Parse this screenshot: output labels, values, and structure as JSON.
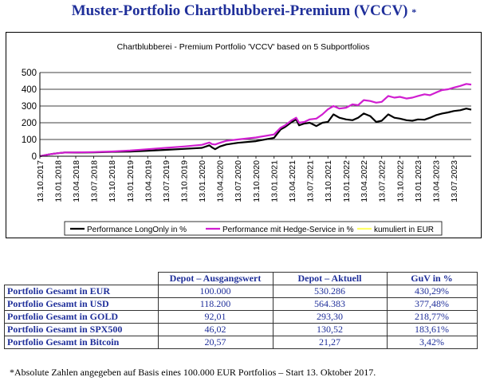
{
  "page": {
    "title": "Muster-Portfolio Chartblubberei-Premium (VCCV)",
    "title_mark": "*",
    "title_color": "#1f2f9a",
    "footnote": "*Absolute Zahlen angegeben auf Basis eines 100.000 EUR Portfolios – Start 13. Oktober 2017."
  },
  "chart_data": {
    "type": "line",
    "title": "Chartblubberei - Premium Portfolio 'VCCV' based on 5 Subportfolios",
    "xlabel": "",
    "ylabel": "",
    "ylim": [
      0,
      500
    ],
    "yticks": [
      0,
      100,
      200,
      300,
      400,
      500
    ],
    "grid": "horizontal",
    "legend_position": "bottom",
    "x_start": "2017-10-13",
    "x_end": "2023-10-10",
    "xticks": [
      "13.10.2017",
      "13.01.2018",
      "13.04.2018",
      "13.07.2018",
      "13.10.2018",
      "13.01.2019",
      "13.04.2019",
      "13.07.2019",
      "13.10.2019",
      "13.01.2020",
      "13.04.2020",
      "13.07.2020",
      "13.10.2020",
      "13.01.2021",
      "13.04.2021",
      "13.07.2021",
      "13.10.2021",
      "13.01.2022",
      "13.04.2022",
      "13.07.2022",
      "13.10.2022",
      "13.01.2023",
      "13.04.2023",
      "13.07.2023"
    ],
    "series": [
      {
        "name": "Performance LongOnly in %",
        "color": "#000000",
        "points": [
          [
            "2017-10-13",
            0
          ],
          [
            "2017-11-15",
            8
          ],
          [
            "2017-12-15",
            14
          ],
          [
            "2018-01-13",
            18
          ],
          [
            "2018-02-15",
            22
          ],
          [
            "2018-04-13",
            22
          ],
          [
            "2018-07-13",
            23
          ],
          [
            "2018-10-13",
            26
          ],
          [
            "2019-01-13",
            28
          ],
          [
            "2019-04-13",
            33
          ],
          [
            "2019-07-13",
            38
          ],
          [
            "2019-10-13",
            44
          ],
          [
            "2020-01-13",
            50
          ],
          [
            "2020-02-20",
            65
          ],
          [
            "2020-03-05",
            52
          ],
          [
            "2020-03-20",
            42
          ],
          [
            "2020-04-13",
            58
          ],
          [
            "2020-05-15",
            70
          ],
          [
            "2020-07-13",
            80
          ],
          [
            "2020-10-13",
            90
          ],
          [
            "2021-01-13",
            110
          ],
          [
            "2021-02-15",
            160
          ],
          [
            "2021-03-10",
            175
          ],
          [
            "2021-04-13",
            205
          ],
          [
            "2021-05-05",
            220
          ],
          [
            "2021-05-20",
            185
          ],
          [
            "2021-06-15",
            195
          ],
          [
            "2021-07-13",
            200
          ],
          [
            "2021-08-15",
            180
          ],
          [
            "2021-09-15",
            200
          ],
          [
            "2021-10-13",
            205
          ],
          [
            "2021-11-10",
            250
          ],
          [
            "2021-12-10",
            230
          ],
          [
            "2022-01-13",
            220
          ],
          [
            "2022-02-15",
            215
          ],
          [
            "2022-03-15",
            230
          ],
          [
            "2022-04-13",
            255
          ],
          [
            "2022-05-15",
            240
          ],
          [
            "2022-06-15",
            205
          ],
          [
            "2022-07-13",
            212
          ],
          [
            "2022-08-15",
            250
          ],
          [
            "2022-09-15",
            230
          ],
          [
            "2022-10-13",
            225
          ],
          [
            "2022-11-15",
            215
          ],
          [
            "2022-12-15",
            212
          ],
          [
            "2023-01-13",
            220
          ],
          [
            "2023-02-15",
            218
          ],
          [
            "2023-03-15",
            230
          ],
          [
            "2023-04-13",
            245
          ],
          [
            "2023-05-15",
            255
          ],
          [
            "2023-06-15",
            262
          ],
          [
            "2023-07-13",
            270
          ],
          [
            "2023-08-15",
            275
          ],
          [
            "2023-09-15",
            285
          ],
          [
            "2023-10-10",
            278
          ]
        ]
      },
      {
        "name": "Performance mit Hedge-Service in %",
        "color": "#d01ed0",
        "points": [
          [
            "2017-10-13",
            0
          ],
          [
            "2017-11-15",
            8
          ],
          [
            "2017-12-15",
            14
          ],
          [
            "2018-01-13",
            18
          ],
          [
            "2018-02-15",
            22
          ],
          [
            "2018-04-13",
            23
          ],
          [
            "2018-07-13",
            25
          ],
          [
            "2018-10-13",
            28
          ],
          [
            "2019-01-13",
            34
          ],
          [
            "2019-04-13",
            42
          ],
          [
            "2019-07-13",
            50
          ],
          [
            "2019-10-13",
            58
          ],
          [
            "2020-01-13",
            68
          ],
          [
            "2020-02-20",
            82
          ],
          [
            "2020-03-05",
            72
          ],
          [
            "2020-03-20",
            70
          ],
          [
            "2020-04-13",
            80
          ],
          [
            "2020-05-15",
            92
          ],
          [
            "2020-07-13",
            100
          ],
          [
            "2020-10-13",
            112
          ],
          [
            "2021-01-13",
            130
          ],
          [
            "2021-02-15",
            170
          ],
          [
            "2021-03-10",
            185
          ],
          [
            "2021-04-13",
            215
          ],
          [
            "2021-05-05",
            230
          ],
          [
            "2021-05-20",
            200
          ],
          [
            "2021-06-15",
            205
          ],
          [
            "2021-07-13",
            220
          ],
          [
            "2021-08-15",
            225
          ],
          [
            "2021-09-15",
            250
          ],
          [
            "2021-10-13",
            280
          ],
          [
            "2021-11-10",
            300
          ],
          [
            "2021-12-10",
            285
          ],
          [
            "2022-01-13",
            290
          ],
          [
            "2022-02-15",
            310
          ],
          [
            "2022-03-15",
            305
          ],
          [
            "2022-04-13",
            335
          ],
          [
            "2022-05-15",
            330
          ],
          [
            "2022-06-15",
            320
          ],
          [
            "2022-07-13",
            325
          ],
          [
            "2022-08-15",
            360
          ],
          [
            "2022-09-15",
            350
          ],
          [
            "2022-10-13",
            355
          ],
          [
            "2022-11-15",
            345
          ],
          [
            "2022-12-15",
            350
          ],
          [
            "2023-01-13",
            360
          ],
          [
            "2023-02-15",
            370
          ],
          [
            "2023-03-15",
            365
          ],
          [
            "2023-04-13",
            380
          ],
          [
            "2023-05-15",
            395
          ],
          [
            "2023-06-15",
            400
          ],
          [
            "2023-07-13",
            410
          ],
          [
            "2023-08-15",
            420
          ],
          [
            "2023-09-15",
            432
          ],
          [
            "2023-10-10",
            428
          ]
        ]
      },
      {
        "name": "kumuliert in EUR",
        "color": "#ffff66",
        "points": []
      }
    ]
  },
  "table": {
    "headers": [
      "",
      "Depot – Ausgangswert",
      "Depot – Aktuell",
      "GuV in %"
    ],
    "rows": [
      [
        "Portfolio Gesamt in EUR",
        "100.000",
        "530.286",
        "430,29%"
      ],
      [
        "Portfolio Gesamt in USD",
        "118.200",
        "564.383",
        "377,48%"
      ],
      [
        "Portfolio Gesamt in GOLD",
        "92,01",
        "293,30",
        "218,77%"
      ],
      [
        "Portfolio Gesamt in SPX500",
        "46,02",
        "130,52",
        "183,61%"
      ],
      [
        "Portfolio Gesamt in Bitcoin",
        "20,57",
        "21,27",
        "3,42%"
      ]
    ]
  }
}
